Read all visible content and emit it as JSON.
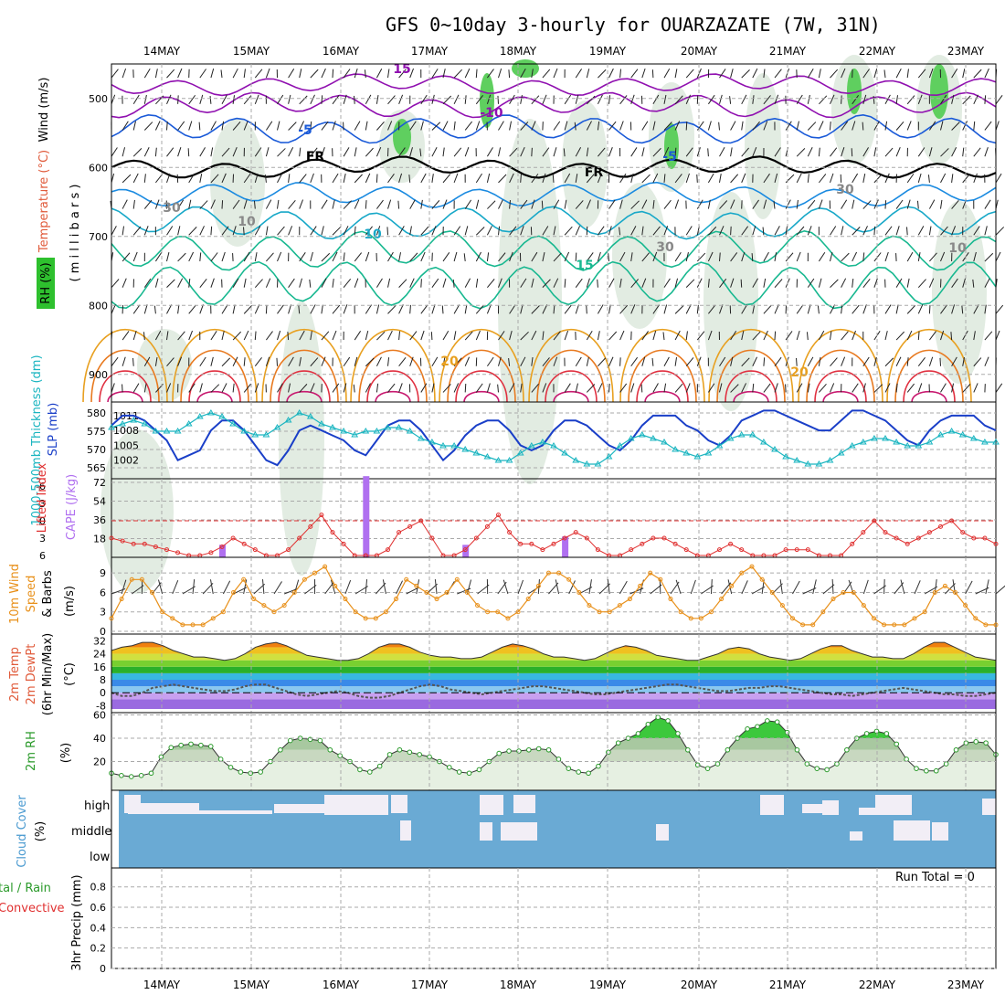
{
  "title": "GFS 0~10day 3-hourly for OUARZAZATE (7W, 31N)",
  "dates": [
    "14MAY",
    "15MAY",
    "16MAY",
    "17MAY",
    "18MAY",
    "19MAY",
    "20MAY",
    "21MAY",
    "22MAY",
    "23MAY"
  ],
  "run_total": "Run Total = 0",
  "labels": {
    "upper_wind": "Wind (m/s)",
    "upper_temp": "Temperature (°C)",
    "upper_mb": "( m i l l i b a r s )",
    "upper_rh": "RH (%)",
    "thickness": "1000-500mb Thickness (dm)",
    "slp": "SLP (mb)",
    "lifted": "Lifted Index",
    "cape": "CAPE (J/kg)",
    "wind10_a": "10m Wind",
    "wind10_b": "Speed",
    "wind10_c": "& Barbs",
    "wind10_unit": "(m/s)",
    "temp_a": "2m Temp",
    "temp_b": "2m DewPt",
    "temp_c": "(6hr Min/Max)",
    "temp_unit": "(°C)",
    "rh_a": "2m RH",
    "rh_unit": "(%)",
    "cloud_a": "Cloud Cover",
    "cloud_unit": "(%)",
    "precip_a": "tal / Rain",
    "precip_b": "Convective",
    "precip_c": "3hr Precip (mm)"
  },
  "colors": {
    "slp": "#1a3fc8",
    "thickness": "#1ab5c0",
    "lifted": "#e03030",
    "cape": "#b070f0",
    "wind10": "#e8901a",
    "rh": "#2a9a2a",
    "cloud_bg": "#6aaad4",
    "cloud_clear": "#f2eef6",
    "temp_contour_warm": "#e8a020",
    "temp_contour_hot": "#e03040",
    "temp_contour_cool": "#18b890",
    "temp_contour_cold": "#1a5ad8",
    "temp_contour_vcold": "#9010b0"
  },
  "chart_data": [
    {
      "panel": "upper_air",
      "type": "heatmap",
      "ylabel": "( m i l l i b a r s )",
      "y_ticks": [
        500,
        600,
        700,
        800,
        900
      ],
      "ylim": [
        940,
        450
      ],
      "contour_labels": [
        "15",
        "-10",
        "-5",
        "FR",
        "-5",
        "FR",
        "10",
        "15",
        "20",
        "20",
        "30",
        "10",
        "30",
        "30",
        "10"
      ],
      "temperature_levels_c": [
        -15,
        -10,
        -5,
        0,
        5,
        10,
        15,
        20,
        25,
        30
      ]
    },
    {
      "panel": "slp_thickness",
      "type": "line",
      "y_left_ticks": [
        565,
        570,
        575,
        580
      ],
      "y_right_ticks": [
        1002,
        1005,
        1008,
        1011
      ],
      "series": [
        {
          "name": "SLP (mb)",
          "values": [
            1009,
            1011,
            1011,
            1010,
            1008,
            1006,
            1002,
            1003,
            1004,
            1008,
            1010,
            1010,
            1008,
            1005,
            1002,
            1001,
            1004,
            1008,
            1009,
            1008,
            1007,
            1006,
            1004,
            1003,
            1006,
            1009,
            1010,
            1010,
            1008,
            1005,
            1002,
            1004,
            1007,
            1009,
            1010,
            1010,
            1008,
            1005,
            1004,
            1005,
            1008,
            1010,
            1010,
            1009,
            1007,
            1005,
            1004,
            1006,
            1009,
            1011,
            1011,
            1011,
            1009,
            1008,
            1006,
            1005,
            1007,
            1010,
            1011,
            1012,
            1012,
            1011,
            1010,
            1009,
            1008,
            1008,
            1010,
            1012,
            1012,
            1011,
            1010,
            1008,
            1006,
            1005,
            1008,
            1010,
            1011,
            1011,
            1011,
            1009,
            1008
          ]
        },
        {
          "name": "1000-500mb Thickness (dm)",
          "values": [
            576,
            577,
            578,
            577,
            575,
            575,
            575,
            577,
            579,
            580,
            579,
            577,
            575,
            574,
            574,
            576,
            578,
            580,
            579,
            577,
            576,
            575,
            574,
            575,
            575,
            576,
            576,
            575,
            573,
            572,
            571,
            571,
            570,
            569,
            568,
            567,
            567,
            569,
            571,
            572,
            571,
            569,
            567,
            566,
            566,
            568,
            571,
            573,
            574,
            573,
            572,
            570,
            569,
            568,
            569,
            571,
            573,
            574,
            574,
            572,
            570,
            568,
            567,
            566,
            566,
            567,
            569,
            571,
            572,
            573,
            573,
            572,
            571,
            571,
            572,
            574,
            575,
            574,
            573,
            572,
            572
          ]
        }
      ]
    },
    {
      "panel": "lifted_cape",
      "type": "bar",
      "y_left_ticks": [
        -6,
        -3,
        0,
        3,
        6
      ],
      "y_right_ticks": [
        18,
        36,
        54,
        72
      ],
      "series": [
        {
          "name": "Lifted Index",
          "values": [
            3,
            3.5,
            4,
            4,
            4.5,
            5,
            5.5,
            6,
            6,
            5.5,
            4.5,
            3,
            4,
            5,
            6,
            6,
            5,
            3,
            1,
            -1,
            2,
            4,
            6,
            6,
            6,
            5,
            2,
            1,
            0,
            3,
            6,
            6,
            5,
            3,
            1,
            -1,
            2,
            4,
            4,
            5,
            4,
            3,
            2,
            3,
            5,
            6,
            6,
            5,
            4,
            3,
            3,
            4,
            5,
            6,
            6,
            5,
            4,
            5,
            6,
            6,
            6,
            5,
            5,
            5,
            6,
            6,
            6,
            4,
            2,
            0,
            2,
            3,
            4,
            3,
            2,
            1,
            0,
            2,
            3,
            3,
            4
          ]
        },
        {
          "name": "CAPE (J/kg)",
          "values": [
            0,
            0,
            0,
            0,
            0,
            0,
            0,
            0,
            0,
            0,
            12,
            0,
            0,
            0,
            0,
            0,
            0,
            0,
            0,
            0,
            0,
            0,
            0,
            78,
            0,
            0,
            0,
            0,
            0,
            0,
            0,
            0,
            12,
            0,
            0,
            0,
            0,
            0,
            0,
            0,
            0,
            20,
            0,
            0,
            0,
            0,
            0,
            0,
            0,
            0,
            0,
            0,
            0,
            0,
            0,
            0,
            0,
            0,
            0,
            0,
            0,
            0,
            0,
            0,
            0,
            0,
            0,
            0,
            0,
            0,
            0,
            0,
            0,
            0,
            0,
            0,
            0,
            0,
            0,
            0,
            0
          ]
        }
      ]
    },
    {
      "panel": "wind10",
      "type": "line",
      "y_ticks": [
        0,
        3,
        6,
        9
      ],
      "ylim": [
        0,
        11
      ],
      "series": [
        {
          "name": "10m Wind Speed",
          "values": [
            2,
            5,
            8,
            8,
            6,
            3,
            2,
            1,
            1,
            1,
            2,
            3,
            6,
            8,
            5,
            4,
            3,
            4,
            6,
            8,
            9,
            10,
            7,
            5,
            3,
            2,
            2,
            3,
            5,
            8,
            7,
            6,
            5,
            6,
            8,
            6,
            4,
            3,
            3,
            2,
            3,
            5,
            7,
            9,
            9,
            8,
            6,
            4,
            3,
            3,
            4,
            5,
            7,
            9,
            8,
            5,
            3,
            2,
            2,
            3,
            5,
            7,
            9,
            10,
            8,
            6,
            4,
            2,
            1,
            1,
            3,
            5,
            6,
            6,
            4,
            2,
            1,
            1,
            1,
            2,
            3,
            6,
            7,
            6,
            4,
            2,
            1,
            1
          ]
        }
      ]
    },
    {
      "panel": "temp_dewpt",
      "type": "area",
      "y_ticks": [
        -8,
        0,
        8,
        16,
        24,
        32
      ],
      "series": [
        {
          "name": "2m Temp",
          "values": [
            26,
            28,
            29,
            31,
            31,
            29,
            26,
            24,
            22,
            22,
            21,
            20,
            21,
            24,
            28,
            30,
            31,
            29,
            26,
            23,
            22,
            21,
            20,
            20,
            21,
            24,
            28,
            30,
            30,
            28,
            25,
            23,
            22,
            22,
            21,
            21,
            22,
            25,
            28,
            30,
            29,
            27,
            24,
            22,
            22,
            21,
            20,
            21,
            24,
            27,
            29,
            28,
            26,
            23,
            22,
            21,
            20,
            20,
            22,
            24,
            27,
            28,
            27,
            24,
            22,
            21,
            20,
            21,
            24,
            27,
            29,
            29,
            26,
            24,
            22,
            22,
            21,
            21,
            24,
            28,
            31,
            31,
            28,
            25,
            22,
            21,
            20
          ]
        },
        {
          "name": "2m DewPt",
          "values": [
            0,
            -2,
            -2,
            0,
            3,
            4,
            5,
            4,
            3,
            2,
            1,
            1,
            2,
            4,
            5,
            5,
            3,
            1,
            -1,
            -2,
            -1,
            0,
            1,
            0,
            -2,
            -3,
            -3,
            -2,
            0,
            2,
            4,
            5,
            4,
            2,
            1,
            0,
            -1,
            0,
            1,
            2,
            3,
            4,
            4,
            3,
            2,
            1,
            0,
            -1,
            -1,
            0,
            1,
            2,
            3,
            4,
            5,
            5,
            4,
            3,
            2,
            1,
            1,
            2,
            3,
            3,
            4,
            4,
            3,
            2,
            1,
            0,
            -1,
            -1,
            -2,
            -1,
            0,
            1,
            2,
            3,
            2,
            1,
            0,
            -1,
            -1,
            -2,
            -2,
            -1,
            0
          ]
        }
      ]
    },
    {
      "panel": "rh2m",
      "type": "area",
      "y_ticks": [
        20,
        40,
        60
      ],
      "series": [
        {
          "name": "2m RH",
          "values": [
            10,
            8,
            7,
            8,
            10,
            24,
            32,
            34,
            35,
            34,
            33,
            22,
            15,
            11,
            10,
            11,
            20,
            30,
            38,
            40,
            39,
            38,
            30,
            25,
            20,
            13,
            11,
            16,
            26,
            30,
            28,
            26,
            24,
            20,
            15,
            11,
            10,
            13,
            20,
            27,
            29,
            29,
            30,
            31,
            30,
            22,
            14,
            11,
            10,
            16,
            28,
            36,
            40,
            44,
            52,
            58,
            55,
            44,
            30,
            17,
            14,
            18,
            30,
            40,
            48,
            50,
            55,
            54,
            45,
            30,
            18,
            14,
            13,
            18,
            30,
            40,
            44,
            46,
            44,
            35,
            22,
            14,
            12,
            12,
            18,
            30,
            36,
            37,
            36,
            26
          ]
        }
      ]
    },
    {
      "panel": "cloud_cover",
      "type": "heatmap",
      "rows": [
        "high",
        "middle",
        "low"
      ]
    },
    {
      "panel": "precip_3hr",
      "type": "bar",
      "y_ticks": [
        0,
        0.2,
        0.4,
        0.6,
        0.8
      ],
      "ylim": [
        0,
        1
      ],
      "values": []
    }
  ]
}
